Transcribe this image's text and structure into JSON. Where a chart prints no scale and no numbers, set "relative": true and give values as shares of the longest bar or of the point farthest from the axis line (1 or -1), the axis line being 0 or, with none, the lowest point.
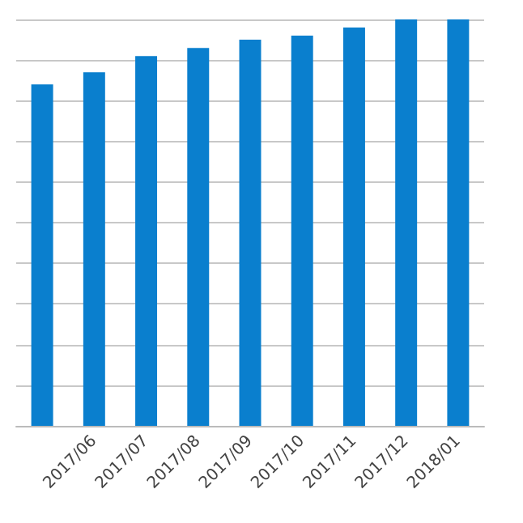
{
  "chart_data": {
    "type": "bar",
    "categories": [
      null,
      "2017/06",
      "2017/07",
      "2017/08",
      "2017/09",
      "2017/10",
      "2017/11",
      "2017/12",
      "2018/01"
    ],
    "values": [
      0.84,
      0.87,
      0.91,
      0.93,
      0.95,
      0.96,
      0.98,
      1,
      1
    ],
    "color": "#0a7fce",
    "relative": true,
    "grid": "y"
  }
}
